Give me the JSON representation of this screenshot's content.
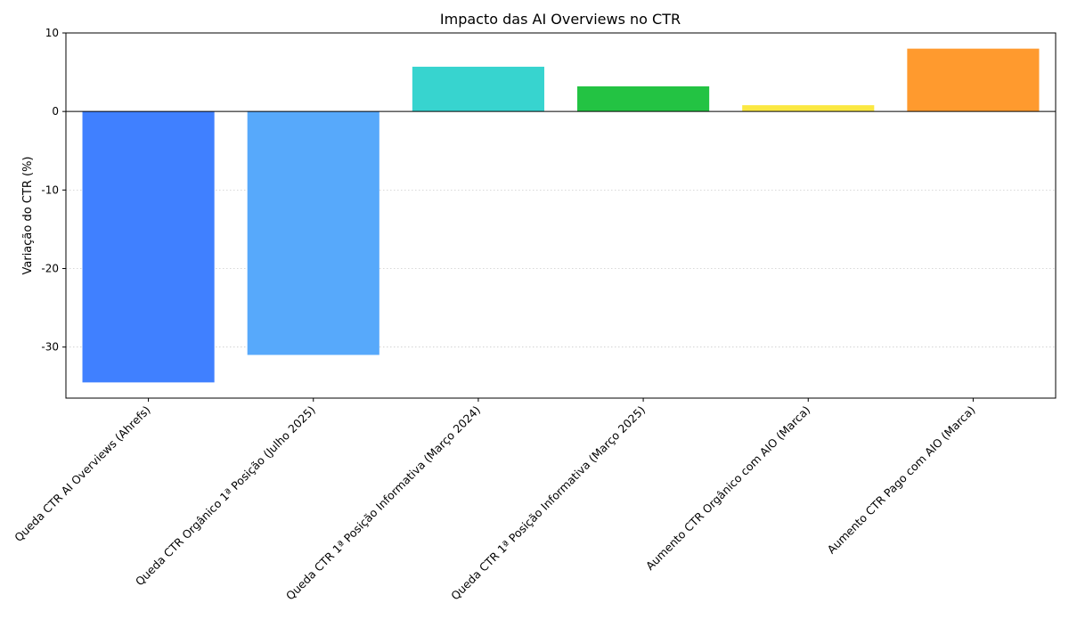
{
  "chart_data": {
    "type": "bar",
    "title": "Impacto das AI Overviews no CTR",
    "xlabel": "",
    "ylabel": "Variação do CTR (%)",
    "ylim": [
      -36.5,
      10
    ],
    "yticks": [
      10,
      0,
      -10,
      -20,
      -30
    ],
    "grid": "horizontal-dotted",
    "zero_line": true,
    "categories": [
      "Queda CTR AI Overviews (Ahrefs)",
      "Queda CTR Orgânico 1ª Posição (Julho 2025)",
      "Queda CTR 1ª Posição Informativa (Março 2024)",
      "Queda CTR 1ª Posição Informativa (Março 2025)",
      "Aumento CTR Orgânico com AIO (Marca)",
      "Aumento CTR Pago com AIO (Marca)"
    ],
    "values": [
      -34.5,
      -31.0,
      5.7,
      3.2,
      0.8,
      8.0
    ],
    "colors": [
      "#4080ff",
      "#57a9fb",
      "#37d4cf",
      "#23c343",
      "#fbe842",
      "#ff9a2e"
    ]
  }
}
